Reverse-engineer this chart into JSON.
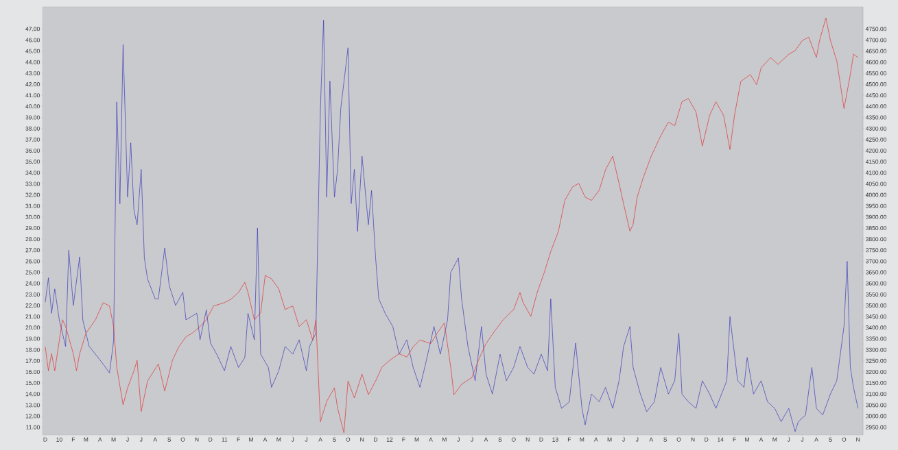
{
  "chart_data": {
    "type": "line",
    "xlim": [
      "2009-11-25",
      "2014-11-12"
    ],
    "ylim": [
      10.3,
      49.0
    ],
    "y2lim": [
      2915,
      4850
    ],
    "xticks": [
      {
        "value": "2009-12",
        "label": "D"
      },
      {
        "value": "2010-01",
        "label": "10"
      },
      {
        "value": "2010-02",
        "label": "F"
      },
      {
        "value": "2010-03",
        "label": "M"
      },
      {
        "value": "2010-04",
        "label": "A"
      },
      {
        "value": "2010-05",
        "label": "M"
      },
      {
        "value": "2010-06",
        "label": "J"
      },
      {
        "value": "2010-07",
        "label": "J"
      },
      {
        "value": "2010-08",
        "label": "A"
      },
      {
        "value": "2010-09",
        "label": "S"
      },
      {
        "value": "2010-10",
        "label": "O"
      },
      {
        "value": "2010-11",
        "label": "N"
      },
      {
        "value": "2010-12",
        "label": "D"
      },
      {
        "value": "2011-01",
        "label": "11"
      },
      {
        "value": "2011-02",
        "label": "F"
      },
      {
        "value": "2011-03",
        "label": "M"
      },
      {
        "value": "2011-04",
        "label": "A"
      },
      {
        "value": "2011-05",
        "label": "M"
      },
      {
        "value": "2011-06",
        "label": "J"
      },
      {
        "value": "2011-07",
        "label": "J"
      },
      {
        "value": "2011-08",
        "label": "A"
      },
      {
        "value": "2011-09",
        "label": "S"
      },
      {
        "value": "2011-10",
        "label": "O"
      },
      {
        "value": "2011-11",
        "label": "N"
      },
      {
        "value": "2011-12",
        "label": "D"
      },
      {
        "value": "2012-01",
        "label": "12"
      },
      {
        "value": "2012-02",
        "label": "F"
      },
      {
        "value": "2012-03",
        "label": "M"
      },
      {
        "value": "2012-04",
        "label": "A"
      },
      {
        "value": "2012-05",
        "label": "M"
      },
      {
        "value": "2012-06",
        "label": "J"
      },
      {
        "value": "2012-07",
        "label": "J"
      },
      {
        "value": "2012-08",
        "label": "A"
      },
      {
        "value": "2012-09",
        "label": "S"
      },
      {
        "value": "2012-10",
        "label": "O"
      },
      {
        "value": "2012-11",
        "label": "N"
      },
      {
        "value": "2012-12",
        "label": "D"
      },
      {
        "value": "2013-01",
        "label": "13"
      },
      {
        "value": "2013-02",
        "label": "F"
      },
      {
        "value": "2013-03",
        "label": "M"
      },
      {
        "value": "2013-04",
        "label": "A"
      },
      {
        "value": "2013-05",
        "label": "M"
      },
      {
        "value": "2013-06",
        "label": "J"
      },
      {
        "value": "2013-07",
        "label": "J"
      },
      {
        "value": "2013-08",
        "label": "A"
      },
      {
        "value": "2013-09",
        "label": "S"
      },
      {
        "value": "2013-10",
        "label": "O"
      },
      {
        "value": "2013-11",
        "label": "N"
      },
      {
        "value": "2013-12",
        "label": "D"
      },
      {
        "value": "2014-01",
        "label": "14"
      },
      {
        "value": "2014-02",
        "label": "F"
      },
      {
        "value": "2014-03",
        "label": "M"
      },
      {
        "value": "2014-04",
        "label": "A"
      },
      {
        "value": "2014-05",
        "label": "M"
      },
      {
        "value": "2014-06",
        "label": "J"
      },
      {
        "value": "2014-07",
        "label": "J"
      },
      {
        "value": "2014-08",
        "label": "A"
      },
      {
        "value": "2014-09",
        "label": "S"
      },
      {
        "value": "2014-10",
        "label": "O"
      },
      {
        "value": "2014-11",
        "label": "N"
      }
    ],
    "yticks": [
      {
        "value": 11,
        "label": "11.00"
      },
      {
        "value": 12,
        "label": "12.00"
      },
      {
        "value": 13,
        "label": "13.00"
      },
      {
        "value": 14,
        "label": "14.00"
      },
      {
        "value": 15,
        "label": "15.00"
      },
      {
        "value": 16,
        "label": "16.00"
      },
      {
        "value": 17,
        "label": "17.00"
      },
      {
        "value": 18,
        "label": "18.00"
      },
      {
        "value": 19,
        "label": "19.00"
      },
      {
        "value": 20,
        "label": "20.00"
      },
      {
        "value": 21,
        "label": "21.00"
      },
      {
        "value": 22,
        "label": "22.00"
      },
      {
        "value": 23,
        "label": "23.00"
      },
      {
        "value": 24,
        "label": "24.00"
      },
      {
        "value": 25,
        "label": "25.00"
      },
      {
        "value": 26,
        "label": "26.00"
      },
      {
        "value": 27,
        "label": "27.00"
      },
      {
        "value": 28,
        "label": "28.00"
      },
      {
        "value": 29,
        "label": "29.00"
      },
      {
        "value": 30,
        "label": "30.00"
      },
      {
        "value": 31,
        "label": "31.00"
      },
      {
        "value": 32,
        "label": "32.00"
      },
      {
        "value": 33,
        "label": "33.00"
      },
      {
        "value": 34,
        "label": "34.00"
      },
      {
        "value": 35,
        "label": "35.00"
      },
      {
        "value": 36,
        "label": "36.00"
      },
      {
        "value": 37,
        "label": "37.00"
      },
      {
        "value": 38,
        "label": "38.00"
      },
      {
        "value": 39,
        "label": "39.00"
      },
      {
        "value": 40,
        "label": "40.00"
      },
      {
        "value": 41,
        "label": "41.00"
      },
      {
        "value": 42,
        "label": "42.00"
      },
      {
        "value": 43,
        "label": "43.00"
      },
      {
        "value": 44,
        "label": "44.00"
      },
      {
        "value": 45,
        "label": "45.00"
      },
      {
        "value": 46,
        "label": "46.00"
      },
      {
        "value": 47,
        "label": "47.00"
      }
    ],
    "y2ticks": [
      {
        "value": 2950,
        "label": "2950.00"
      },
      {
        "value": 3000,
        "label": "3000.00"
      },
      {
        "value": 3050,
        "label": "3050.00"
      },
      {
        "value": 3100,
        "label": "3100.00"
      },
      {
        "value": 3150,
        "label": "3150.00"
      },
      {
        "value": 3200,
        "label": "3200.00"
      },
      {
        "value": 3250,
        "label": "3250.00"
      },
      {
        "value": 3300,
        "label": "3300.00"
      },
      {
        "value": 3350,
        "label": "3350.00"
      },
      {
        "value": 3400,
        "label": "3400.00"
      },
      {
        "value": 3450,
        "label": "3450.00"
      },
      {
        "value": 3500,
        "label": "3500.00"
      },
      {
        "value": 3550,
        "label": "3550.00"
      },
      {
        "value": 3600,
        "label": "3600.00"
      },
      {
        "value": 3650,
        "label": "3650.00"
      },
      {
        "value": 3700,
        "label": "3700.00"
      },
      {
        "value": 3750,
        "label": "3750.00"
      },
      {
        "value": 3800,
        "label": "3800.00"
      },
      {
        "value": 3850,
        "label": "3850.00"
      },
      {
        "value": 3900,
        "label": "3900.00"
      },
      {
        "value": 3950,
        "label": "3950.00"
      },
      {
        "value": 4000,
        "label": "4000.00"
      },
      {
        "value": 4050,
        "label": "4050.00"
      },
      {
        "value": 4100,
        "label": "4100.00"
      },
      {
        "value": 4150,
        "label": "4150.00"
      },
      {
        "value": 4200,
        "label": "4200.00"
      },
      {
        "value": 4250,
        "label": "4250.00"
      },
      {
        "value": 4300,
        "label": "4300.00"
      },
      {
        "value": 4350,
        "label": "4350.00"
      },
      {
        "value": 4400,
        "label": "4400.00"
      },
      {
        "value": 4450,
        "label": "4450.00"
      },
      {
        "value": 4500,
        "label": "4500.00"
      },
      {
        "value": 4550,
        "label": "4550.00"
      },
      {
        "value": 4600,
        "label": "4600.00"
      },
      {
        "value": 4650,
        "label": "4650.00"
      },
      {
        "value": 4700,
        "label": "4700.00"
      },
      {
        "value": 4750,
        "label": "4750.00"
      }
    ],
    "series": [
      {
        "color": "#3a3ab8",
        "axis": "y",
        "x": [
          "2009-12-01",
          "2009-12-08",
          "2009-12-15",
          "2009-12-22",
          "2010-01-01",
          "2010-01-15",
          "2010-01-22",
          "2010-02-01",
          "2010-02-15",
          "2010-02-22",
          "2010-03-08",
          "2010-03-22",
          "2010-04-08",
          "2010-04-22",
          "2010-05-01",
          "2010-05-08",
          "2010-05-15",
          "2010-05-22",
          "2010-06-01",
          "2010-06-08",
          "2010-06-15",
          "2010-06-22",
          "2010-07-01",
          "2010-07-08",
          "2010-07-15",
          "2010-08-01",
          "2010-08-08",
          "2010-08-22",
          "2010-09-01",
          "2010-09-15",
          "2010-10-01",
          "2010-10-08",
          "2010-11-01",
          "2010-11-08",
          "2010-11-22",
          "2010-12-01",
          "2010-12-15",
          "2011-01-01",
          "2011-01-15",
          "2011-02-01",
          "2011-02-15",
          "2011-02-22",
          "2011-03-08",
          "2011-03-15",
          "2011-03-22",
          "2011-04-08",
          "2011-04-15",
          "2011-05-01",
          "2011-05-15",
          "2011-06-01",
          "2011-06-15",
          "2011-07-01",
          "2011-07-08",
          "2011-07-22",
          "2011-08-01",
          "2011-08-08",
          "2011-08-15",
          "2011-08-22",
          "2011-09-01",
          "2011-09-08",
          "2011-09-15",
          "2011-10-01",
          "2011-10-08",
          "2011-10-15",
          "2011-10-22",
          "2011-11-01",
          "2011-11-15",
          "2011-11-22",
          "2011-12-01",
          "2011-12-08",
          "2011-12-22",
          "2012-01-08",
          "2012-01-22",
          "2012-02-08",
          "2012-02-22",
          "2012-03-08",
          "2012-03-22",
          "2012-04-08",
          "2012-04-22",
          "2012-05-08",
          "2012-05-15",
          "2012-06-01",
          "2012-06-08",
          "2012-06-22",
          "2012-07-08",
          "2012-07-22",
          "2012-08-01",
          "2012-08-15",
          "2012-09-01",
          "2012-09-15",
          "2012-10-01",
          "2012-10-15",
          "2012-11-01",
          "2012-11-15",
          "2012-12-01",
          "2012-12-15",
          "2012-12-22",
          "2013-01-01",
          "2013-01-15",
          "2013-02-01",
          "2013-02-15",
          "2013-03-01",
          "2013-03-08",
          "2013-03-22",
          "2013-04-08",
          "2013-04-22",
          "2013-05-08",
          "2013-05-22",
          "2013-06-01",
          "2013-06-15",
          "2013-06-22",
          "2013-07-08",
          "2013-07-22",
          "2013-08-08",
          "2013-08-22",
          "2013-09-08",
          "2013-09-22",
          "2013-10-01",
          "2013-10-08",
          "2013-10-22",
          "2013-11-08",
          "2013-11-22",
          "2013-12-08",
          "2013-12-22",
          "2014-01-15",
          "2014-01-22",
          "2014-02-08",
          "2014-02-22",
          "2014-03-01",
          "2014-03-15",
          "2014-04-01",
          "2014-04-15",
          "2014-05-01",
          "2014-05-15",
          "2014-06-01",
          "2014-06-15",
          "2014-06-22",
          "2014-07-08",
          "2014-07-22",
          "2014-08-01",
          "2014-08-15",
          "2014-09-01",
          "2014-09-15",
          "2014-10-01",
          "2014-10-08",
          "2014-10-15",
          "2014-10-22",
          "2014-11-01"
        ],
        "values": [
          22.3,
          24.5,
          21.3,
          23.5,
          20.7,
          18.3,
          27.0,
          22.0,
          26.4,
          20.7,
          18.3,
          17.6,
          16.7,
          15.9,
          18.8,
          40.4,
          31.2,
          45.6,
          31.8,
          36.7,
          30.6,
          29.3,
          34.3,
          26.3,
          24.4,
          22.6,
          22.6,
          27.2,
          23.8,
          22.0,
          23.2,
          20.7,
          21.3,
          18.9,
          21.6,
          18.6,
          17.6,
          16.1,
          18.3,
          16.4,
          17.3,
          21.3,
          18.9,
          29.0,
          17.6,
          16.4,
          14.6,
          16.1,
          18.3,
          17.6,
          18.9,
          16.1,
          18.3,
          19.5,
          39.8,
          47.8,
          31.8,
          42.3,
          31.8,
          34.3,
          39.8,
          45.3,
          31.2,
          34.3,
          28.7,
          35.5,
          29.3,
          32.4,
          26.3,
          22.6,
          21.3,
          20.1,
          17.6,
          18.9,
          16.4,
          14.6,
          17.0,
          20.1,
          17.6,
          20.7,
          25.0,
          26.3,
          22.6,
          18.3,
          15.2,
          20.1,
          15.8,
          14.0,
          17.6,
          15.2,
          16.4,
          18.3,
          16.4,
          15.8,
          17.6,
          16.1,
          22.6,
          14.6,
          12.7,
          13.3,
          18.6,
          12.7,
          11.2,
          14.0,
          13.3,
          14.6,
          12.7,
          15.2,
          18.3,
          20.1,
          16.4,
          14.0,
          12.4,
          13.3,
          16.4,
          14.0,
          15.2,
          19.5,
          14.0,
          13.3,
          12.7,
          15.2,
          14.0,
          12.7,
          15.2,
          21.0,
          15.2,
          14.6,
          17.3,
          14.0,
          15.2,
          13.3,
          12.7,
          11.5,
          12.7,
          10.6,
          11.5,
          12.1,
          16.4,
          12.7,
          12.1,
          14.0,
          15.2,
          20.1,
          26.0,
          16.4,
          14.6,
          12.7
        ]
      },
      {
        "color": "#e03030",
        "axis": "y2",
        "x": [
          "2009-12-01",
          "2009-12-08",
          "2009-12-15",
          "2009-12-22",
          "2010-01-08",
          "2010-01-15",
          "2010-02-01",
          "2010-02-08",
          "2010-02-15",
          "2010-03-01",
          "2010-03-22",
          "2010-04-08",
          "2010-04-22",
          "2010-05-01",
          "2010-05-08",
          "2010-05-22",
          "2010-06-01",
          "2010-06-15",
          "2010-06-22",
          "2010-07-01",
          "2010-07-15",
          "2010-08-08",
          "2010-08-22",
          "2010-09-08",
          "2010-09-22",
          "2010-10-08",
          "2010-10-22",
          "2010-11-08",
          "2010-11-22",
          "2010-12-08",
          "2011-01-01",
          "2011-01-15",
          "2011-02-01",
          "2011-02-15",
          "2011-02-22",
          "2011-03-08",
          "2011-03-22",
          "2011-04-01",
          "2011-04-15",
          "2011-05-01",
          "2011-05-15",
          "2011-06-01",
          "2011-06-15",
          "2011-07-01",
          "2011-07-15",
          "2011-07-22",
          "2011-08-01",
          "2011-08-15",
          "2011-09-01",
          "2011-09-08",
          "2011-09-22",
          "2011-10-01",
          "2011-10-15",
          "2011-11-01",
          "2011-11-15",
          "2011-12-01",
          "2011-12-15",
          "2012-01-01",
          "2012-01-22",
          "2012-02-08",
          "2012-02-22",
          "2012-03-08",
          "2012-04-01",
          "2012-04-15",
          "2012-05-01",
          "2012-05-15",
          "2012-05-22",
          "2012-06-08",
          "2012-07-01",
          "2012-07-15",
          "2012-08-01",
          "2012-08-22",
          "2012-09-08",
          "2012-10-01",
          "2012-10-15",
          "2012-10-22",
          "2012-11-08",
          "2012-11-22",
          "2012-12-08",
          "2012-12-22",
          "2013-01-08",
          "2013-01-22",
          "2013-02-08",
          "2013-02-22",
          "2013-03-08",
          "2013-03-22",
          "2013-04-08",
          "2013-04-22",
          "2013-05-08",
          "2013-05-22",
          "2013-06-01",
          "2013-06-15",
          "2013-06-22",
          "2013-07-01",
          "2013-07-15",
          "2013-08-01",
          "2013-08-22",
          "2013-09-08",
          "2013-09-22",
          "2013-10-08",
          "2013-10-22",
          "2013-11-08",
          "2013-11-22",
          "2013-12-08",
          "2013-12-22",
          "2014-01-08",
          "2014-01-22",
          "2014-02-01",
          "2014-02-15",
          "2014-03-08",
          "2014-03-22",
          "2014-04-01",
          "2014-04-22",
          "2014-05-08",
          "2014-06-01",
          "2014-06-15",
          "2014-07-01",
          "2014-07-15",
          "2014-08-01",
          "2014-08-08",
          "2014-08-22",
          "2014-09-01",
          "2014-09-15",
          "2014-09-22",
          "2014-10-01",
          "2014-10-15",
          "2014-10-22",
          "2014-11-01"
        ],
        "values": [
          3313,
          3205,
          3282,
          3205,
          3436,
          3405,
          3282,
          3205,
          3282,
          3375,
          3436,
          3513,
          3498,
          3405,
          3221,
          3051,
          3128,
          3205,
          3252,
          3021,
          3159,
          3236,
          3113,
          3252,
          3313,
          3359,
          3375,
          3405,
          3436,
          3498,
          3513,
          3528,
          3559,
          3605,
          3559,
          3436,
          3467,
          3636,
          3621,
          3575,
          3482,
          3498,
          3405,
          3436,
          3344,
          3436,
          2975,
          3067,
          3128,
          3036,
          2925,
          3159,
          3082,
          3190,
          3097,
          3159,
          3221,
          3252,
          3282,
          3267,
          3313,
          3344,
          3328,
          3375,
          3421,
          3221,
          3097,
          3144,
          3175,
          3252,
          3328,
          3390,
          3436,
          3482,
          3559,
          3513,
          3451,
          3559,
          3651,
          3744,
          3836,
          3975,
          4036,
          4052,
          3990,
          3975,
          4021,
          4113,
          4175,
          4052,
          3959,
          3836,
          3867,
          3990,
          4082,
          4175,
          4267,
          4329,
          4313,
          4421,
          4436,
          4375,
          4221,
          4359,
          4421,
          4359,
          4205,
          4359,
          4513,
          4544,
          4498,
          4575,
          4621,
          4590,
          4636,
          4652,
          4698,
          4713,
          4621,
          4698,
          4800,
          4698,
          4606,
          4513,
          4390,
          4544,
          4636,
          4621
        ]
      }
    ]
  }
}
